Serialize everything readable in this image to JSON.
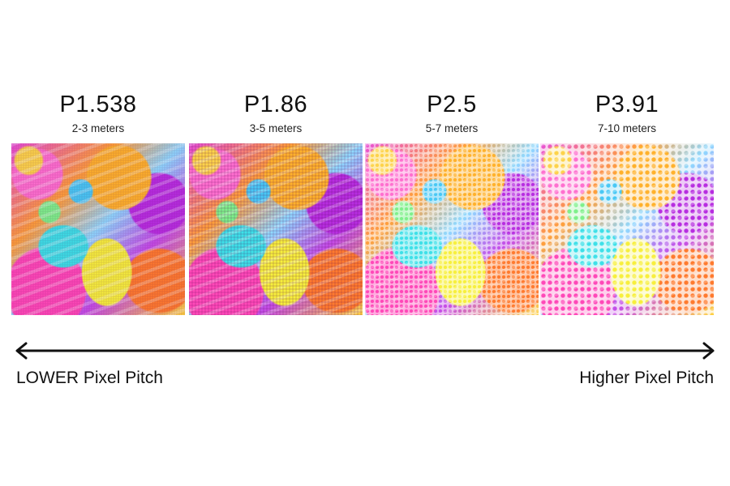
{
  "panels": [
    {
      "pitch": "P1.538",
      "distance": "2-3 meters"
    },
    {
      "pitch": "P1.86",
      "distance": "3-5 meters"
    },
    {
      "pitch": "P2.5",
      "distance": "5-7 meters"
    },
    {
      "pitch": "P3.91",
      "distance": "7-10 meters"
    }
  ],
  "scale": {
    "left_label": "LOWER Pixel Pitch",
    "right_label": "Higher Pixel Pitch"
  }
}
